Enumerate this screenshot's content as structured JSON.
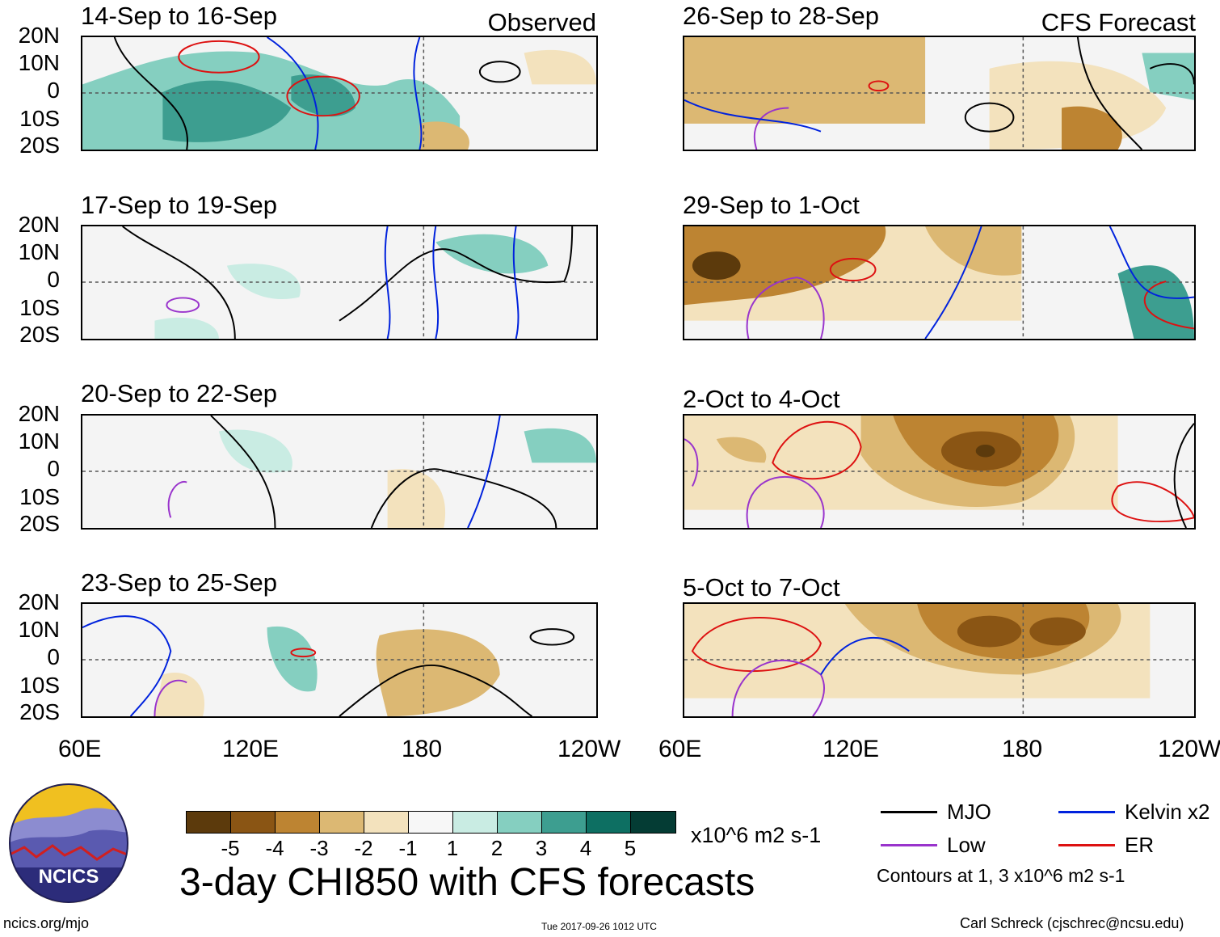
{
  "title": "3-day CHI850 with CFS forecasts",
  "observed_label": "Observed",
  "forecast_label": "CFS Forecast",
  "lat_labels": [
    "20N",
    "10N",
    "0",
    "10S",
    "20S"
  ],
  "lon_labels": [
    "60E",
    "120E",
    "180",
    "120W"
  ],
  "panels_left": [
    "14-Sep to 16-Sep",
    "17-Sep to 19-Sep",
    "20-Sep to 22-Sep",
    "23-Sep to 25-Sep"
  ],
  "panels_right": [
    "26-Sep to 28-Sep",
    "29-Sep to 1-Oct",
    "2-Oct to 4-Oct",
    "5-Oct to 7-Oct"
  ],
  "colorbar": {
    "colors": [
      "#5c3a0c",
      "#8a5514",
      "#bd8432",
      "#dcb873",
      "#f3e2bd",
      "#f7f7f7",
      "#c9ece3",
      "#85cfc0",
      "#3d9e90",
      "#0d6f62",
      "#043c34"
    ],
    "labels": [
      "-5",
      "-4",
      "-3",
      "-2",
      "-1",
      "1",
      "2",
      "3",
      "4",
      "5"
    ],
    "units": "x10^6 m2 s-1"
  },
  "legend": {
    "mjo": "MJO",
    "kelvin": "Kelvin x2",
    "low": "Low",
    "er": "ER",
    "contours": "Contours at 1, 3 x10^6 m2 s-1",
    "colors": {
      "mjo": "#000000",
      "kelvin": "#0022dd",
      "low": "#9933cc",
      "er": "#dd1111"
    }
  },
  "logo_text": "NCICS",
  "site_url": "ncics.org/mjo",
  "timestamp": "Tue 2017-09-26 1012 UTC",
  "author": "Carl Schreck (cjschrec@ncsu.edu)"
}
